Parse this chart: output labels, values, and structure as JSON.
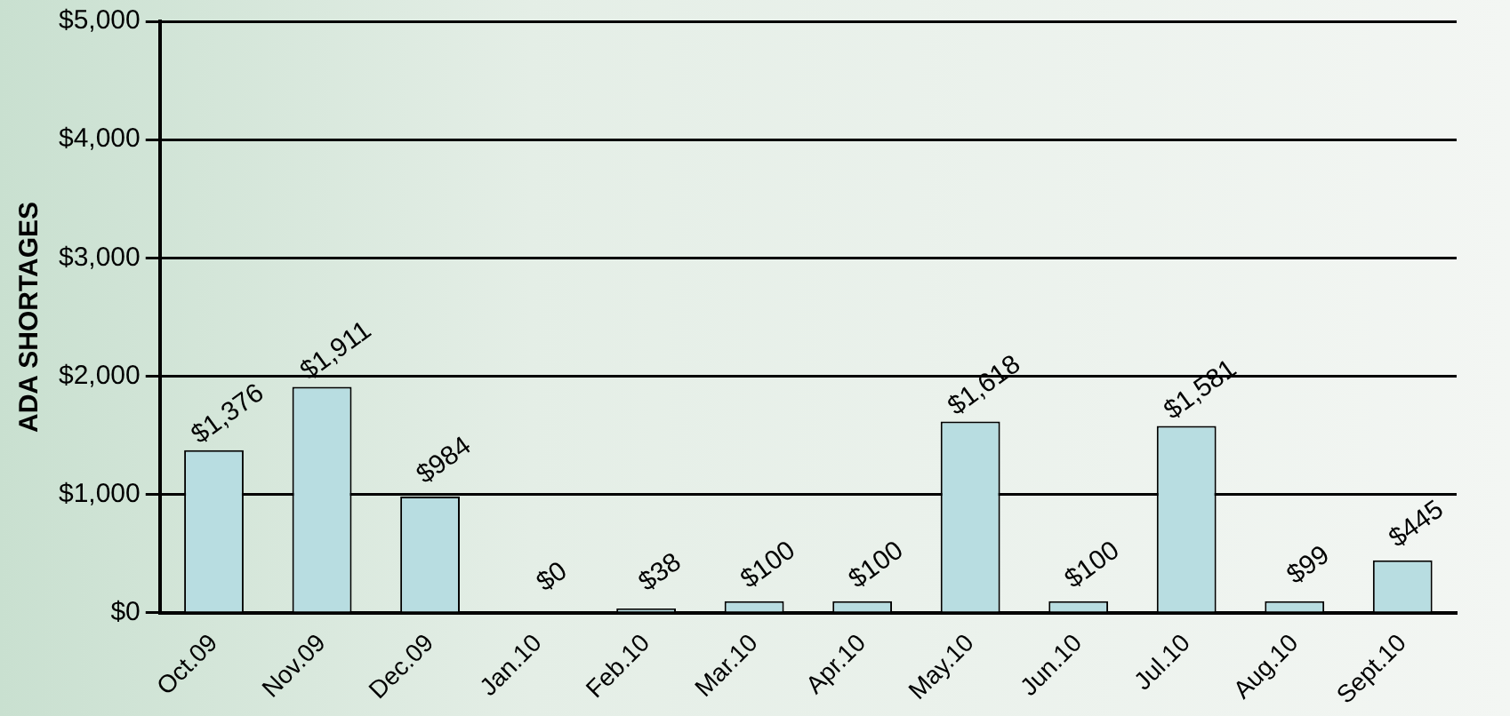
{
  "chart_data": {
    "type": "bar",
    "ylabel": "ADA SHORTAGES",
    "categories": [
      "Oct.09",
      "Nov.09",
      "Dec.09",
      "Jan.10",
      "Feb.10",
      "Mar.10",
      "Apr.10",
      "May.10",
      "Jun.10",
      "Jul.10",
      "Aug.10",
      "Sept.10"
    ],
    "values": [
      1376,
      1911,
      984,
      0,
      38,
      100,
      100,
      1618,
      100,
      1581,
      99,
      445
    ],
    "value_labels": [
      "$1,376",
      "$1,911",
      "$984",
      "$0",
      "$38",
      "$100",
      "$100",
      "$1,618",
      "$100",
      "$1,581",
      "$99",
      "$445"
    ],
    "color": "#b8dde1",
    "ylim": [
      0,
      5000
    ],
    "yticks": [
      {
        "value": 0,
        "label": "$0"
      },
      {
        "value": 1000,
        "label": "$1,000"
      },
      {
        "value": 2000,
        "label": "$2,000"
      },
      {
        "value": 3000,
        "label": "$3,000"
      },
      {
        "value": 4000,
        "label": "$4,000"
      },
      {
        "value": 5000,
        "label": "$5,000"
      }
    ],
    "grid": "y",
    "legend": false
  }
}
